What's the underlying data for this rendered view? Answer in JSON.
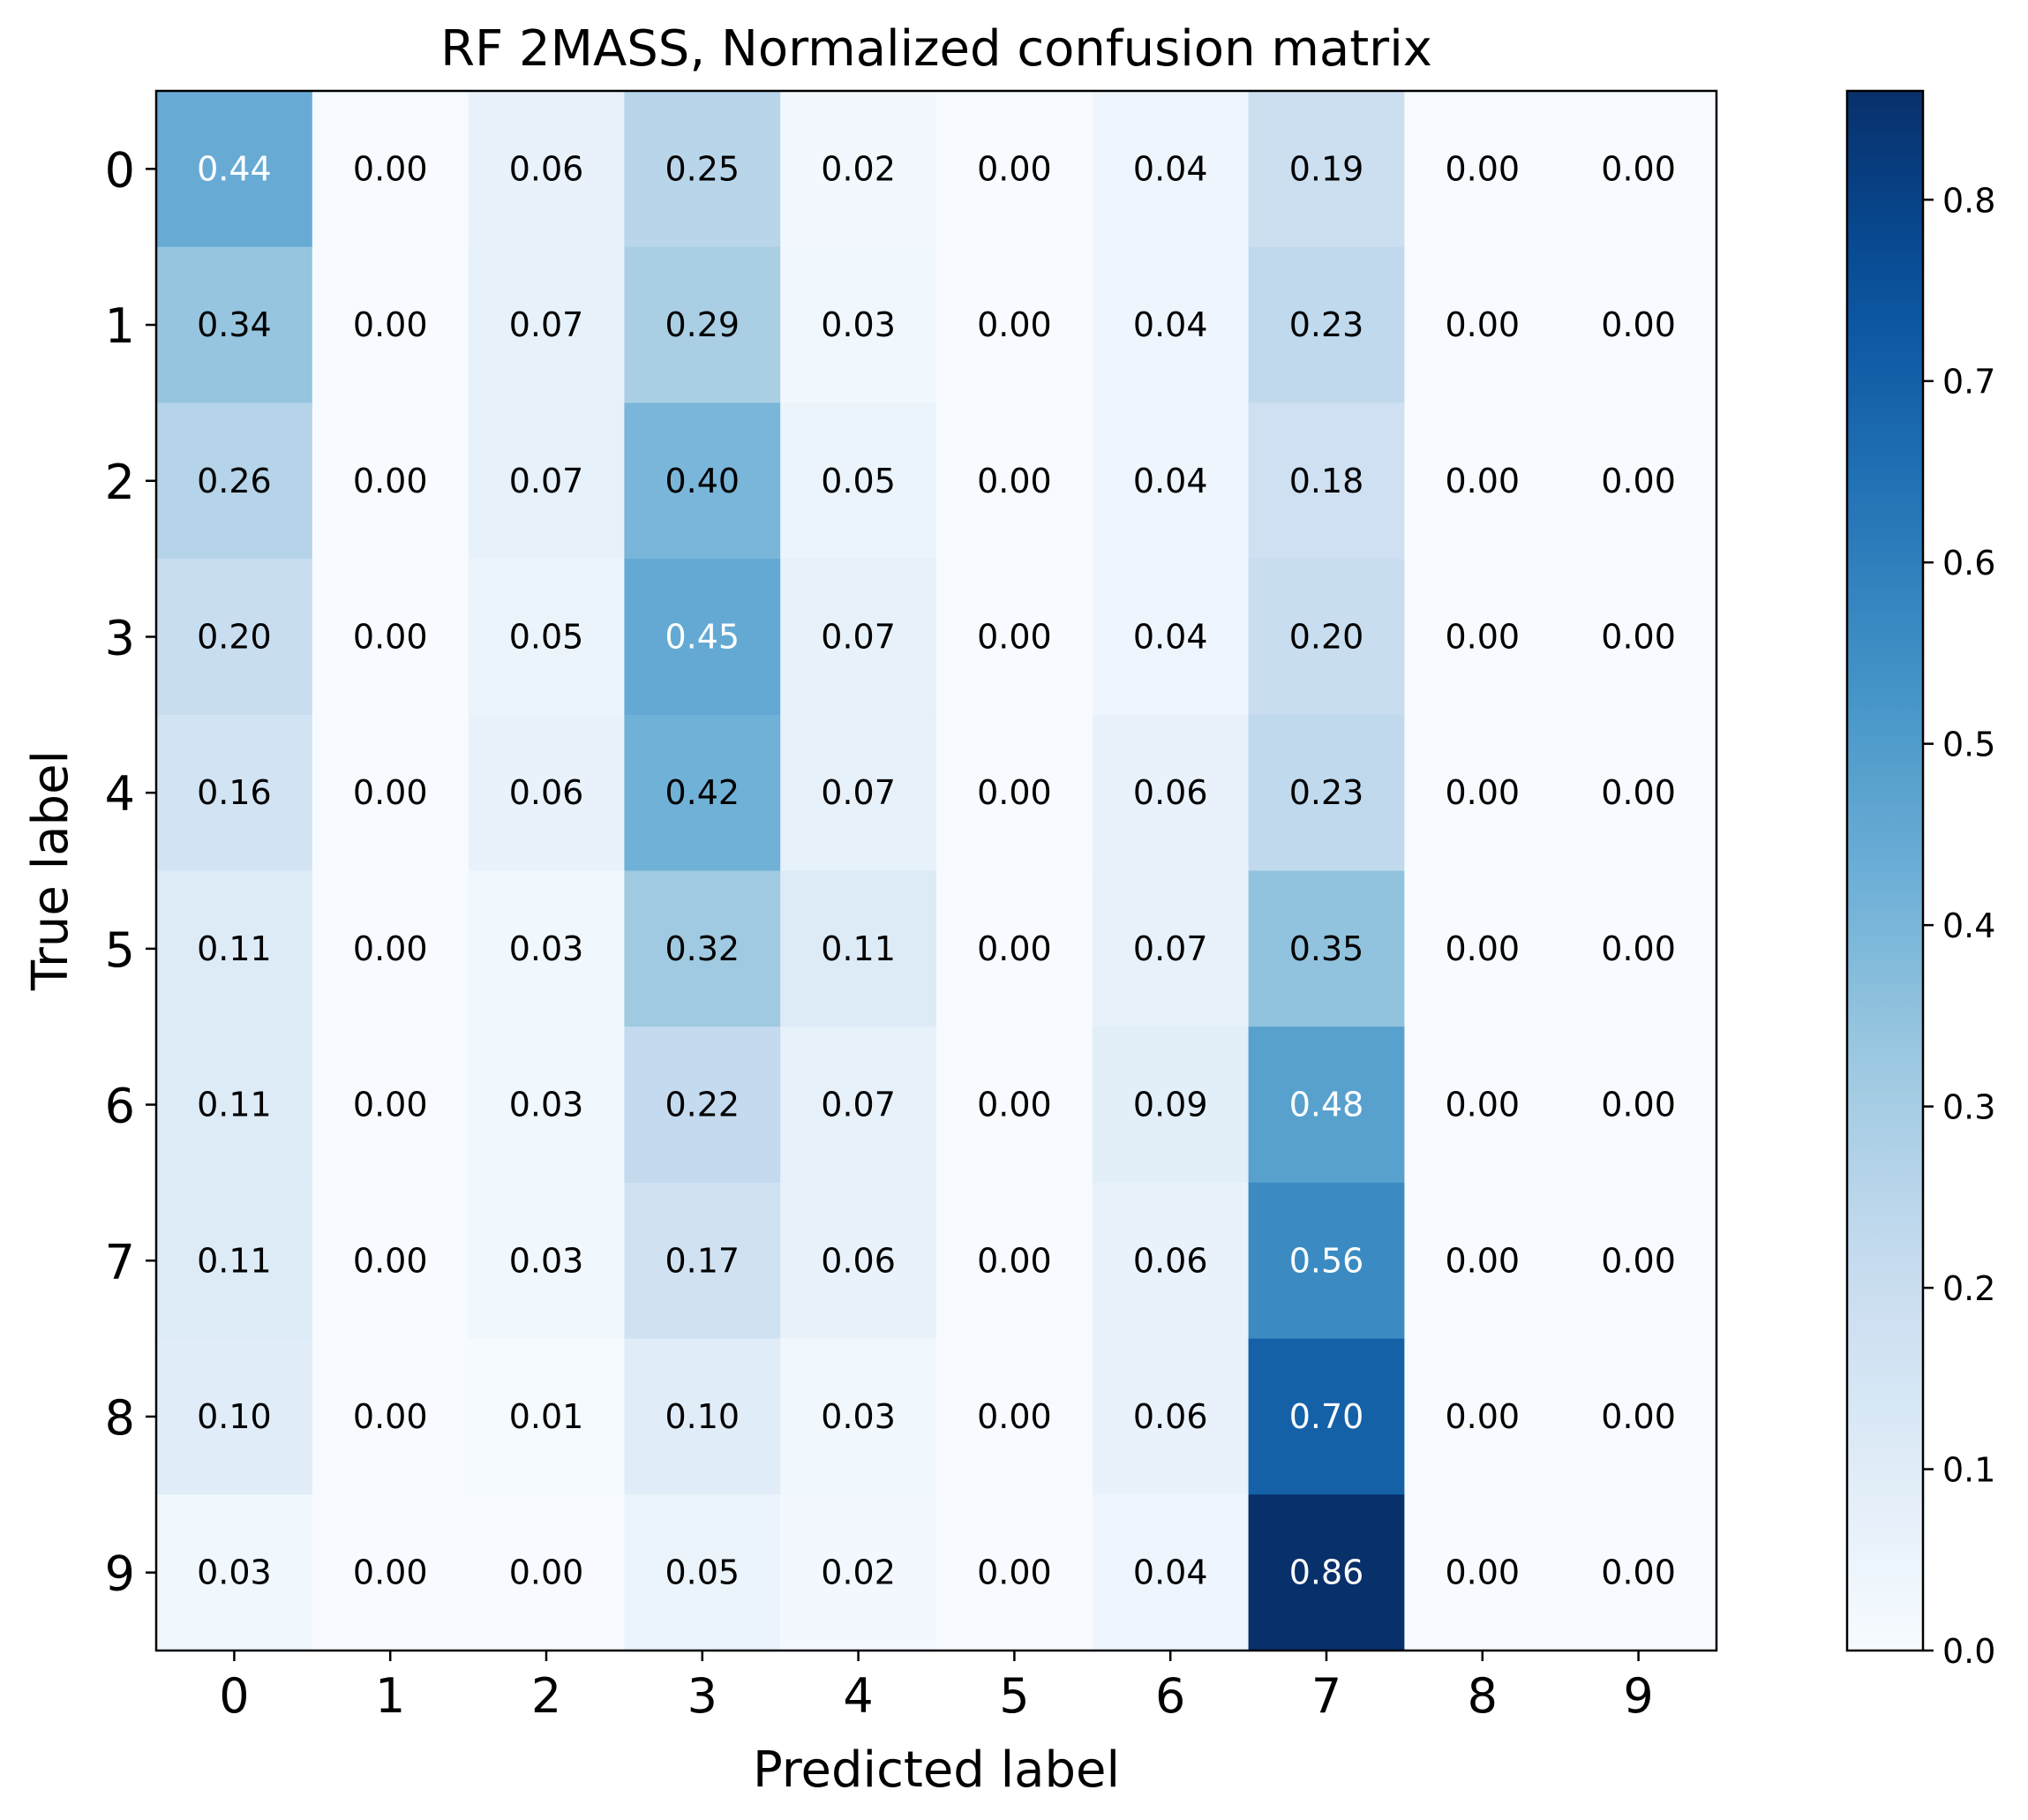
{
  "chart_data": {
    "type": "heatmap",
    "title": "RF 2MASS, Normalized confusion matrix",
    "xlabel": "Predicted label",
    "ylabel": "True label",
    "x_ticks": [
      "0",
      "1",
      "2",
      "3",
      "4",
      "5",
      "6",
      "7",
      "8",
      "9"
    ],
    "y_ticks": [
      "0",
      "1",
      "2",
      "3",
      "4",
      "5",
      "6",
      "7",
      "8",
      "9"
    ],
    "values": [
      [
        0.44,
        0.0,
        0.06,
        0.25,
        0.02,
        0.0,
        0.04,
        0.19,
        0.0,
        0.0
      ],
      [
        0.34,
        0.0,
        0.07,
        0.29,
        0.03,
        0.0,
        0.04,
        0.23,
        0.0,
        0.0
      ],
      [
        0.26,
        0.0,
        0.07,
        0.4,
        0.05,
        0.0,
        0.04,
        0.18,
        0.0,
        0.0
      ],
      [
        0.2,
        0.0,
        0.05,
        0.45,
        0.07,
        0.0,
        0.04,
        0.2,
        0.0,
        0.0
      ],
      [
        0.16,
        0.0,
        0.06,
        0.42,
        0.07,
        0.0,
        0.06,
        0.23,
        0.0,
        0.0
      ],
      [
        0.11,
        0.0,
        0.03,
        0.32,
        0.11,
        0.0,
        0.07,
        0.35,
        0.0,
        0.0
      ],
      [
        0.11,
        0.0,
        0.03,
        0.22,
        0.07,
        0.0,
        0.09,
        0.48,
        0.0,
        0.0
      ],
      [
        0.11,
        0.0,
        0.03,
        0.17,
        0.06,
        0.0,
        0.06,
        0.56,
        0.0,
        0.0
      ],
      [
        0.1,
        0.0,
        0.01,
        0.1,
        0.03,
        0.0,
        0.06,
        0.7,
        0.0,
        0.0
      ],
      [
        0.03,
        0.0,
        0.0,
        0.05,
        0.02,
        0.0,
        0.04,
        0.86,
        0.0,
        0.0
      ]
    ],
    "colormap": "Blues",
    "vmin": 0.0,
    "vmax": 0.86,
    "colorbar_ticks": [
      "0.0",
      "0.1",
      "0.2",
      "0.3",
      "0.4",
      "0.5",
      "0.6",
      "0.7",
      "0.8"
    ],
    "grid": false
  }
}
